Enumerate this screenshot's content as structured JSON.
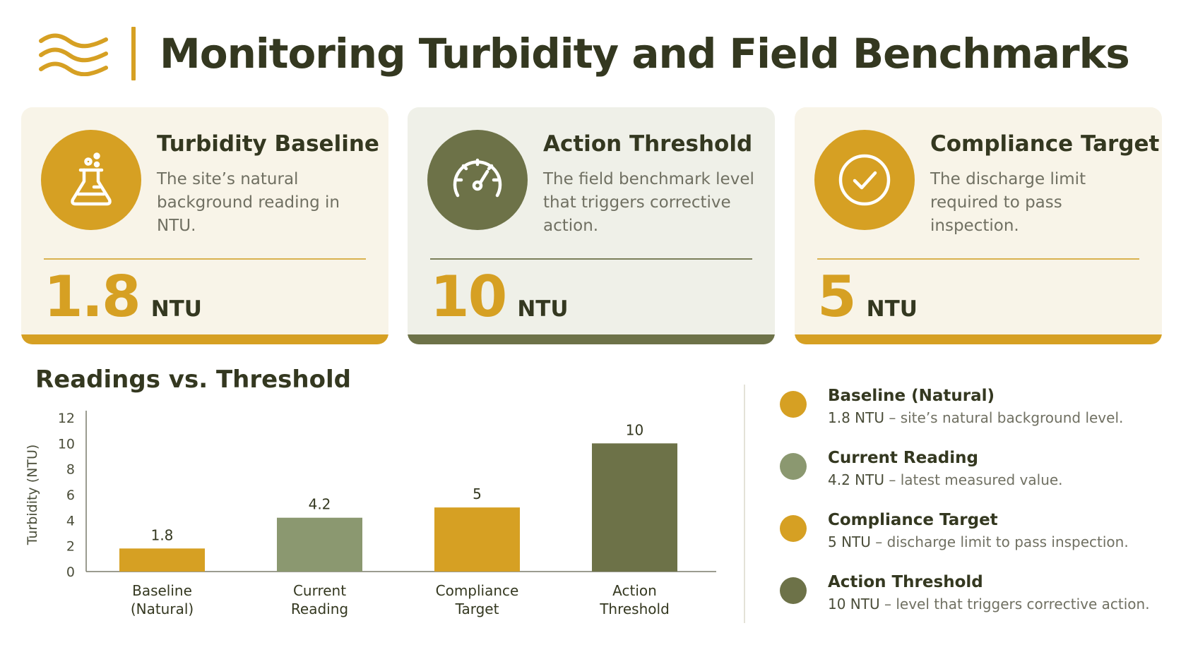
{
  "header": {
    "title": "Monitoring Turbidity and Field Benchmarks",
    "icon": "water-waves-icon"
  },
  "colors": {
    "gold": "#d6a023",
    "olive": "#6d7248",
    "sage": "#8b9870",
    "card_gold_bg": "#f8f4e8",
    "card_olive_bg": "#eff0e8"
  },
  "cards": [
    {
      "title": "Turbidity Baseline",
      "description": "The site’s natural background reading in NTU.",
      "value": "1.8",
      "unit": "NTU",
      "icon": "lab-flask-icon"
    },
    {
      "title": "Action Threshold",
      "description": "The field benchmark level that triggers corrective action.",
      "value": "10",
      "unit": "NTU",
      "icon": "gauge-icon"
    },
    {
      "title": "Compliance Target",
      "description": "The discharge limit required to pass inspection.",
      "value": "5",
      "unit": "NTU",
      "icon": "check-circle-icon"
    }
  ],
  "chart_data": {
    "type": "bar",
    "title": "Readings vs. Threshold",
    "ylabel": "Turbidity (NTU)",
    "xlabel": "",
    "ylim": [
      0,
      12
    ],
    "yticks": [
      0,
      2,
      4,
      6,
      8,
      10,
      12
    ],
    "categories": [
      "Baseline (Natural)",
      "Current Reading",
      "Compliance Target",
      "Action Threshold"
    ],
    "category_lines": [
      [
        "Baseline",
        "(Natural)"
      ],
      [
        "Current",
        "Reading"
      ],
      [
        "Compliance",
        "Target"
      ],
      [
        "Action",
        "Threshold"
      ]
    ],
    "values": [
      1.8,
      4.2,
      5,
      10
    ],
    "data_labels": [
      "1.8",
      "4.2",
      "5",
      "10"
    ],
    "bar_colors": [
      "#d6a023",
      "#8b9870",
      "#d6a023",
      "#6d7248"
    ],
    "grid": false,
    "legend_position": "right"
  },
  "legend": [
    {
      "name": "Baseline (Natural)",
      "value": "1.8 NTU",
      "desc": " – site’s natural background level.",
      "color": "#d6a023"
    },
    {
      "name": "Current Reading",
      "value": "4.2 NTU",
      "desc": " – latest measured value.",
      "color": "#8b9870"
    },
    {
      "name": "Compliance Target",
      "value": "5 NTU",
      "desc": " – discharge limit to pass inspection.",
      "color": "#d6a023"
    },
    {
      "name": "Action Threshold",
      "value": "10 NTU",
      "desc": " – level that triggers corrective action.",
      "color": "#6d7248"
    }
  ]
}
